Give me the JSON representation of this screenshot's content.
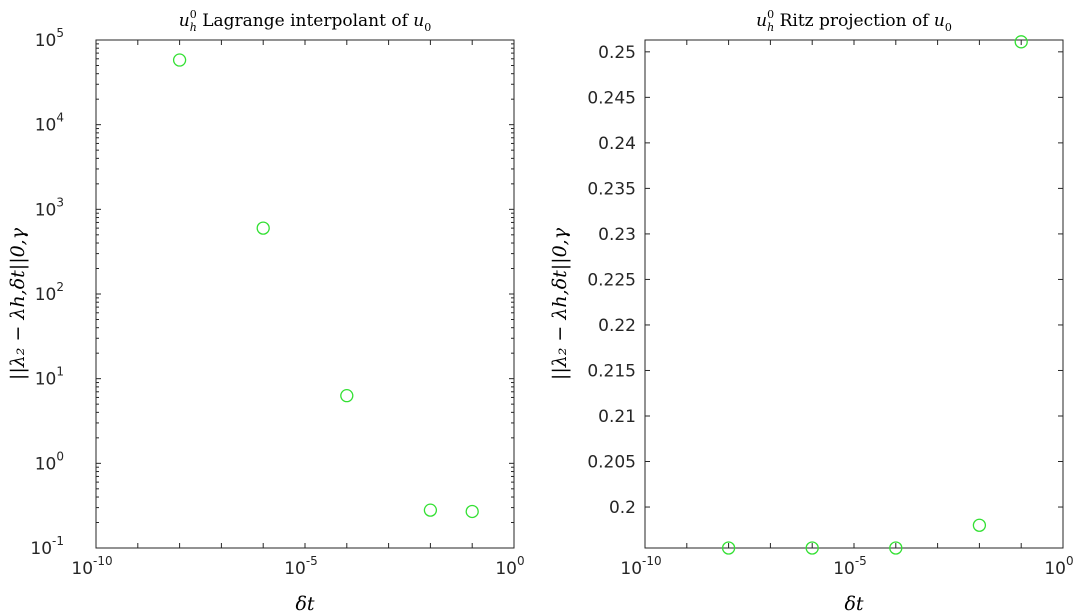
{
  "chart_data": [
    {
      "type": "scatter",
      "title_math": "u",
      "title_sub": "h",
      "title_sup": "0",
      "title_text": " Lagrange interpolant of ",
      "title_math2": "u",
      "title_sub2": "0",
      "xlabel": "δt",
      "ylabel": "||λ₂ − λh,δt||0,γ",
      "xscale": "log",
      "yscale": "log",
      "xlim": [
        1e-10,
        1
      ],
      "ylim": [
        0.1,
        100000
      ],
      "xticks": [
        {
          "base": "10",
          "exp": "-10"
        },
        {
          "base": "10",
          "exp": "-5"
        },
        {
          "base": "10",
          "exp": "0"
        }
      ],
      "yticks": [
        {
          "base": "10",
          "exp": "-1"
        },
        {
          "base": "10",
          "exp": "0"
        },
        {
          "base": "10",
          "exp": "1"
        },
        {
          "base": "10",
          "exp": "2"
        },
        {
          "base": "10",
          "exp": "3"
        },
        {
          "base": "10",
          "exp": "4"
        },
        {
          "base": "10",
          "exp": "5"
        }
      ],
      "marker_color": "#33e033",
      "points": [
        {
          "x": 1e-08,
          "y": 58000
        },
        {
          "x": 1e-06,
          "y": 600
        },
        {
          "x": 0.0001,
          "y": 6.3
        },
        {
          "x": 0.01,
          "y": 0.28
        },
        {
          "x": 0.1,
          "y": 0.27
        }
      ]
    },
    {
      "type": "scatter",
      "title_math": "u",
      "title_sub": "h",
      "title_sup": "0",
      "title_text": " Ritz projection of ",
      "title_math2": "u",
      "title_sub2": "0",
      "xlabel": "δt",
      "ylabel": "||λ₂ − λh,δt||0,γ",
      "xscale": "log",
      "yscale": "linear",
      "xlim": [
        1e-10,
        1
      ],
      "ylim": [
        0.1955,
        0.2513
      ],
      "xticks": [
        {
          "base": "10",
          "exp": "-10"
        },
        {
          "base": "10",
          "exp": "-5"
        },
        {
          "base": "10",
          "exp": "0"
        }
      ],
      "yticks": [
        "0.2",
        "0.205",
        "0.21",
        "0.215",
        "0.22",
        "0.225",
        "0.23",
        "0.235",
        "0.24",
        "0.245",
        "0.25"
      ],
      "marker_color": "#33e033",
      "points": [
        {
          "x": 1e-08,
          "y": 0.1955
        },
        {
          "x": 1e-06,
          "y": 0.1955
        },
        {
          "x": 0.0001,
          "y": 0.1955
        },
        {
          "x": 0.01,
          "y": 0.198
        },
        {
          "x": 0.1,
          "y": 0.2511
        }
      ]
    }
  ]
}
